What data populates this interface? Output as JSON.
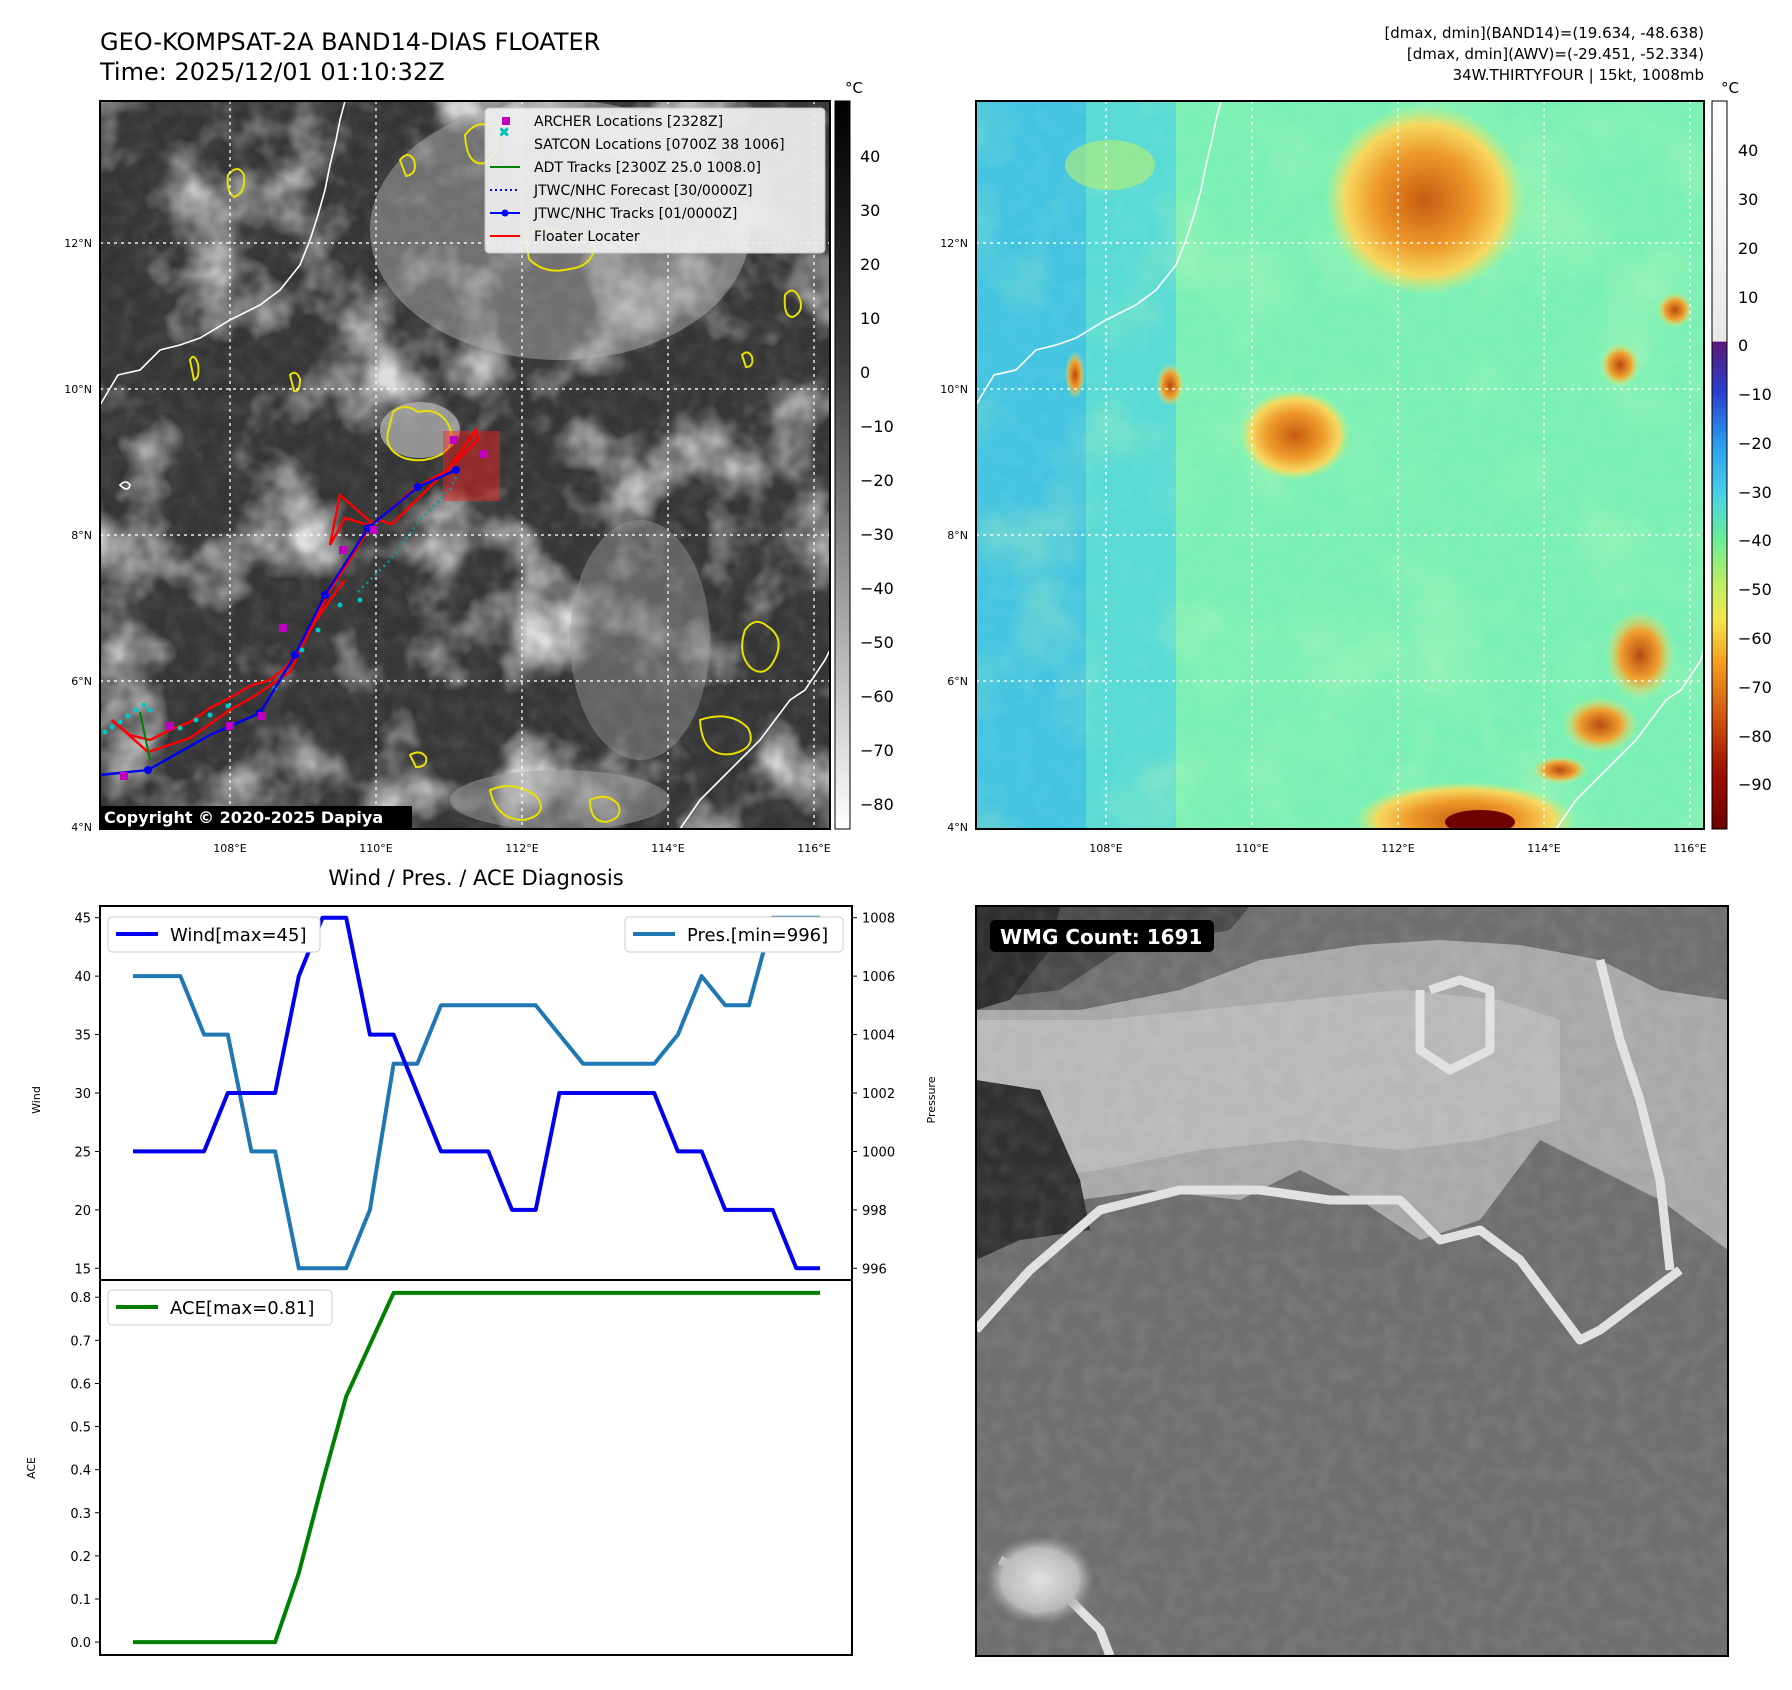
{
  "header": {
    "title_line1": "GEO-KOMPSAT-2A BAND14-DIAS FLOATER",
    "title_line2": "Time: 2025/12/01 01:10:32Z",
    "info_line1": "[dmax, dmin](BAND14)=(19.634, -48.638)",
    "info_line2": "[dmax, dmin](AWV)=(-29.451, -52.334)",
    "info_line3": "34W.THIRTYFOUR | 15kt, 1008mb"
  },
  "map_ir": {
    "lat_labels": [
      "12°N",
      "10°N",
      "8°N",
      "6°N",
      "4°N"
    ],
    "lon_labels": [
      "108°E",
      "110°E",
      "112°E",
      "114°E",
      "116°E"
    ],
    "colorbar_unit": "°C",
    "colorbar_ticks": [
      "40",
      "30",
      "20",
      "10",
      "0",
      "−10",
      "−20",
      "−30",
      "−40",
      "−50",
      "−60",
      "−70",
      "−80"
    ],
    "copyright": "Copyright © 2020-2025 Dapiya",
    "legend": [
      {
        "label": "ARCHER Locations [2328Z]",
        "color": "#bf00bf"
      },
      {
        "label": "SATCON Locations [0700Z 38 1006]",
        "color": "#00bfbf"
      },
      {
        "label": "ADT Tracks [2300Z 25.0 1008.0]",
        "color": "#008000"
      },
      {
        "label": "JTWC/NHC Forecast [30/0000Z]",
        "color": "#0000ff"
      },
      {
        "label": "JTWC/NHC Tracks [01/0000Z]",
        "color": "#0000ff"
      },
      {
        "label": "Floater Locater",
        "color": "#ff0000"
      }
    ]
  },
  "map_color": {
    "lat_labels": [
      "12°N",
      "10°N",
      "8°N",
      "6°N",
      "4°N"
    ],
    "lon_labels": [
      "108°E",
      "110°E",
      "112°E",
      "114°E",
      "116°E"
    ],
    "colorbar_unit": "°C",
    "colorbar_ticks": [
      "40",
      "30",
      "20",
      "10",
      "0",
      "−10",
      "−20",
      "−30",
      "−40",
      "−50",
      "−60",
      "−70",
      "−80",
      "−90"
    ]
  },
  "wmg": {
    "label": "WMG Count: 1691"
  },
  "chart_data": [
    {
      "type": "line",
      "title": "Wind / Pres. / ACE Diagnosis",
      "x": [
        0,
        1,
        2,
        3,
        4,
        5,
        6,
        7,
        8,
        9,
        10,
        11,
        12,
        13,
        14,
        15,
        16,
        17,
        18,
        19,
        20,
        21,
        22,
        23,
        24,
        25,
        26,
        27,
        28,
        29
      ],
      "ylabel": "Wind",
      "ylim": [
        14,
        46
      ],
      "y_ticks": [
        "15",
        "20",
        "25",
        "30",
        "35",
        "40",
        "45"
      ],
      "series": [
        {
          "name": "Wind",
          "legend": "Wind[max=45]",
          "color": "#0000ee",
          "values": [
            25,
            25,
            25,
            25,
            30,
            30,
            30,
            40,
            45,
            45,
            35,
            35,
            30,
            25,
            25,
            25,
            20,
            20,
            30,
            30,
            30,
            30,
            30,
            25,
            25,
            20,
            20,
            20,
            15,
            15
          ]
        }
      ],
      "secondary": {
        "ylabel": "Pressure",
        "ylim": [
          995.6,
          1008.4
        ],
        "y_ticks": [
          "996",
          "998",
          "1000",
          "1002",
          "1004",
          "1006",
          "1008"
        ],
        "series": [
          {
            "name": "Pres.",
            "legend": "Pres.[min=996]",
            "color": "#1f77b4",
            "values": [
              1006,
              1006,
              1006,
              1004,
              1004,
              1000,
              1000,
              996,
              996,
              996,
              998,
              1003,
              1003,
              1005,
              1005,
              1005,
              1005,
              1005,
              1004,
              1003,
              1003,
              1003,
              1003,
              1004,
              1006,
              1005,
              1005,
              1008,
              1008,
              1008
            ]
          }
        ]
      }
    },
    {
      "type": "line",
      "x": [
        0,
        1,
        2,
        3,
        4,
        5,
        6,
        7,
        8,
        9,
        10,
        11,
        12,
        13,
        14,
        15,
        16,
        17,
        18,
        19,
        20,
        21,
        22,
        23,
        24,
        25,
        26,
        27,
        28,
        29
      ],
      "ylabel": "ACE",
      "ylim": [
        -0.03,
        0.84
      ],
      "y_ticks": [
        "0.0",
        "0.1",
        "0.2",
        "0.3",
        "0.4",
        "0.5",
        "0.6",
        "0.7",
        "0.8"
      ],
      "series": [
        {
          "name": "ACE",
          "legend": "ACE[max=0.81]",
          "color": "#008000",
          "values": [
            0,
            0,
            0,
            0,
            0,
            0,
            0,
            0.16,
            0.37,
            0.57,
            0.69,
            0.81,
            0.81,
            0.81,
            0.81,
            0.81,
            0.81,
            0.81,
            0.81,
            0.81,
            0.81,
            0.81,
            0.81,
            0.81,
            0.81,
            0.81,
            0.81,
            0.81,
            0.81,
            0.81
          ]
        }
      ]
    }
  ],
  "colors": {
    "wind": "#0000ee",
    "pressure": "#1f77b4",
    "ace": "#008000",
    "floater": "#ff0000",
    "archer": "#bf00bf",
    "satcon": "#00bfbf"
  }
}
